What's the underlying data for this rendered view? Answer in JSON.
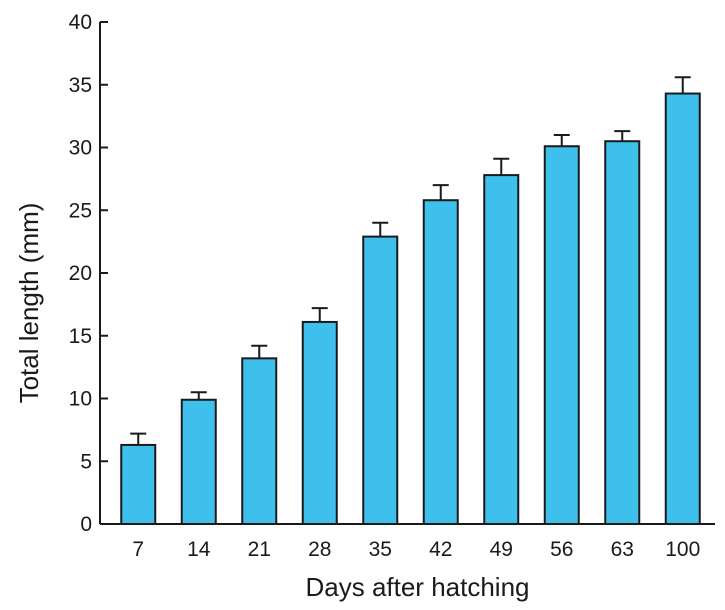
{
  "chart_data": {
    "type": "bar",
    "title": "",
    "xlabel": "Days after hatching",
    "ylabel": "Total length (mm)",
    "categories": [
      "7",
      "14",
      "21",
      "28",
      "35",
      "42",
      "49",
      "56",
      "63",
      "100"
    ],
    "values": [
      6.3,
      9.9,
      13.2,
      16.1,
      22.9,
      25.8,
      27.8,
      30.1,
      30.5,
      34.3
    ],
    "error": [
      0.9,
      0.6,
      1.0,
      1.1,
      1.1,
      1.2,
      1.3,
      0.9,
      0.8,
      1.3
    ],
    "ylim": [
      0,
      40
    ],
    "yticks": [
      0,
      5,
      10,
      15,
      20,
      25,
      30,
      35,
      40
    ],
    "grid": false,
    "bar_color": "#3fc0ec"
  }
}
